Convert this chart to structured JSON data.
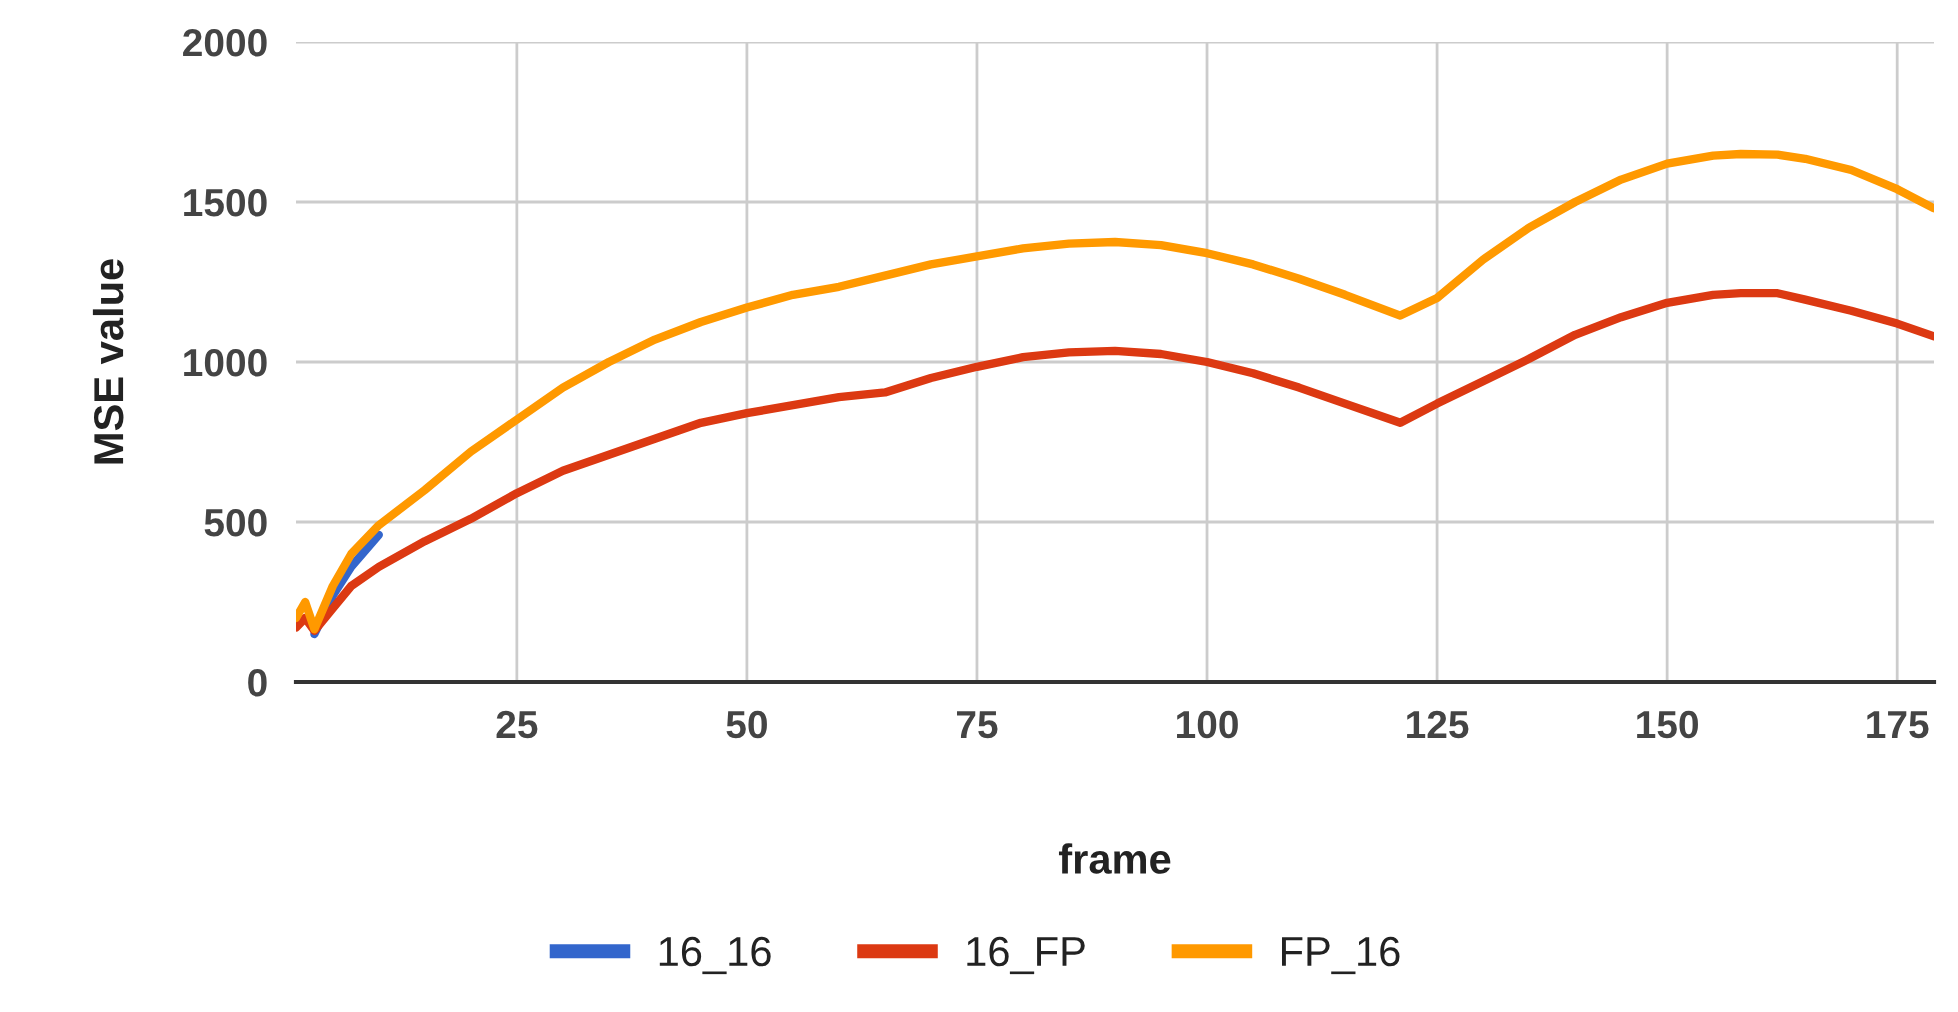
{
  "chart_data": {
    "type": "line",
    "xlabel": "frame",
    "ylabel": "MSE value",
    "x": [
      1,
      2,
      3,
      5,
      7,
      10,
      15,
      20,
      25,
      30,
      35,
      40,
      45,
      50,
      55,
      60,
      65,
      70,
      75,
      80,
      85,
      90,
      95,
      100,
      105,
      110,
      115,
      121,
      125,
      130,
      135,
      140,
      145,
      150,
      155,
      158,
      162,
      165,
      170,
      175,
      179
    ],
    "series": [
      {
        "name": "16_16",
        "color": "#3366cc",
        "values": [
          null,
          null,
          150,
          270,
          360,
          460,
          null,
          null,
          null,
          null,
          null,
          null,
          null,
          null,
          null,
          null,
          null,
          null,
          null,
          null,
          null,
          null,
          null,
          null,
          null,
          null,
          null,
          null,
          null,
          null,
          null,
          null,
          null,
          null,
          null,
          null,
          null,
          null,
          null,
          null,
          null
        ]
      },
      {
        "name": "16_FP",
        "color": "#dc3912",
        "values": [
          170,
          200,
          160,
          230,
          300,
          360,
          440,
          510,
          590,
          660,
          710,
          760,
          810,
          840,
          865,
          890,
          905,
          950,
          985,
          1015,
          1030,
          1035,
          1025,
          1000,
          965,
          920,
          870,
          810,
          870,
          940,
          1010,
          1085,
          1140,
          1185,
          1210,
          1215,
          1215,
          1195,
          1160,
          1120,
          1080
        ]
      },
      {
        "name": "FP_16",
        "color": "#ff9900",
        "values": [
          200,
          250,
          165,
          300,
          400,
          490,
          600,
          720,
          820,
          920,
          1000,
          1070,
          1125,
          1170,
          1210,
          1235,
          1270,
          1305,
          1330,
          1355,
          1370,
          1375,
          1365,
          1340,
          1305,
          1260,
          1210,
          1145,
          1200,
          1320,
          1420,
          1500,
          1570,
          1620,
          1645,
          1650,
          1648,
          1635,
          1600,
          1540,
          1480
        ]
      }
    ],
    "xlim": [
      1,
      179
    ],
    "xticks": [
      25,
      50,
      75,
      100,
      125,
      150,
      175
    ],
    "ylim": [
      0,
      2000
    ],
    "yticks": [
      0,
      500,
      1000,
      1500,
      2000
    ],
    "grid": true,
    "legend": "bottom",
    "marker": "none",
    "line_style": "solid"
  }
}
